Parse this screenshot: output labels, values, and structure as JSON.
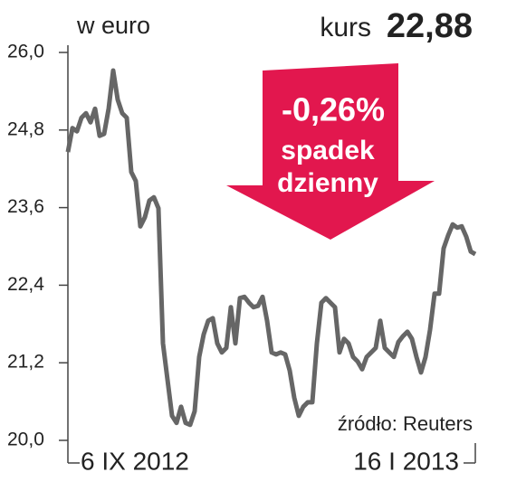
{
  "chart_data": {
    "type": "line",
    "unit_label": "w euro",
    "price_label": "kurs",
    "price": "22,88",
    "change": "-0,26%",
    "change_text": [
      "spadek",
      "dzienny"
    ],
    "source": "źródło: Reuters",
    "color": "#666666",
    "ylim": [
      20.0,
      26.0
    ],
    "yticks": [
      {
        "value": 20.0,
        "label": "20,0"
      },
      {
        "value": 21.2,
        "label": "21,2"
      },
      {
        "value": 22.4,
        "label": "22,4"
      },
      {
        "value": 23.6,
        "label": "23,6"
      },
      {
        "value": 24.8,
        "label": "24,8"
      },
      {
        "value": 26.0,
        "label": "26,0"
      }
    ],
    "categories": [
      "6 IX 2012",
      null,
      null,
      null,
      null,
      null,
      null,
      null,
      null,
      null,
      null,
      null,
      null,
      null,
      null,
      null,
      null,
      null,
      null,
      null,
      null,
      null,
      null,
      null,
      null,
      null,
      null,
      null,
      null,
      null,
      null,
      null,
      null,
      null,
      null,
      null,
      null,
      null,
      null,
      null,
      null,
      null,
      null,
      null,
      null,
      null,
      null,
      null,
      null,
      null,
      null,
      null,
      null,
      null,
      null,
      null,
      null,
      null,
      null,
      null,
      null,
      null,
      null,
      null,
      null,
      null,
      null,
      null,
      null,
      null,
      null,
      null,
      null,
      null,
      null,
      null,
      null,
      null,
      null,
      null,
      null,
      null,
      null,
      null,
      null,
      null,
      null,
      null,
      null,
      null,
      "16 I 2013"
    ],
    "values": [
      24.46,
      24.83,
      24.78,
      24.99,
      25.06,
      24.92,
      25.13,
      24.71,
      24.74,
      25.13,
      25.72,
      25.27,
      25.06,
      24.99,
      24.15,
      24.01,
      23.31,
      23.45,
      23.71,
      23.76,
      23.59,
      21.5,
      20.94,
      20.38,
      20.27,
      20.52,
      20.27,
      20.24,
      20.45,
      21.29,
      21.64,
      21.85,
      21.89,
      21.5,
      21.36,
      21.43,
      22.06,
      21.5,
      22.2,
      22.22,
      22.13,
      22.06,
      22.08,
      22.22,
      21.85,
      21.36,
      21.33,
      21.36,
      21.33,
      21.08,
      20.66,
      20.38,
      20.52,
      20.59,
      20.59,
      21.5,
      22.13,
      22.2,
      22.13,
      22.06,
      21.36,
      21.57,
      21.5,
      21.29,
      21.22,
      21.1,
      21.29,
      21.36,
      21.43,
      21.85,
      21.43,
      21.36,
      21.29,
      21.52,
      21.61,
      21.68,
      21.57,
      21.29,
      21.05,
      21.29,
      21.71,
      22.27,
      22.27,
      22.97,
      23.17,
      23.34,
      23.29,
      23.31,
      23.15,
      22.92,
      22.88
    ]
  }
}
